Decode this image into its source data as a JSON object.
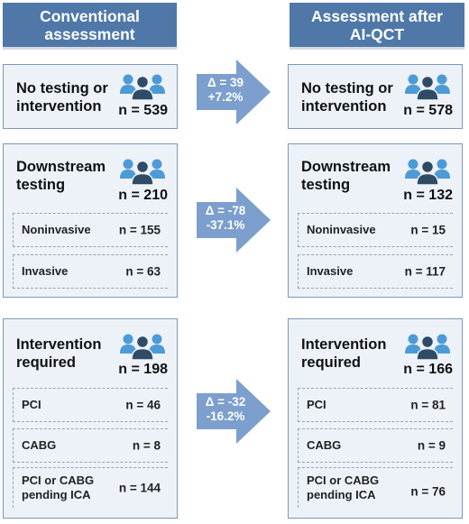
{
  "headers": {
    "left": "Conventional\nassessment",
    "right": "Assessment after\nAI-QCT"
  },
  "left": {
    "no_testing": {
      "title": "No testing or\nintervention",
      "total": "n = 539"
    },
    "downstream": {
      "title": "Downstream\ntesting",
      "total": "n = 210",
      "items": [
        {
          "label": "Noninvasive",
          "value": "n = 155"
        },
        {
          "label": "Invasive",
          "value": "n = 63"
        }
      ]
    },
    "intervention": {
      "title": "Intervention\nrequired",
      "total": "n = 198",
      "items": [
        {
          "label": "PCI",
          "value": "n = 46"
        },
        {
          "label": "CABG",
          "value": "n = 8"
        },
        {
          "label": "PCI or CABG\npending ICA",
          "value": "n = 144"
        }
      ]
    }
  },
  "right": {
    "no_testing": {
      "title": "No testing or\nintervention",
      "total": "n = 578"
    },
    "downstream": {
      "title": "Downstream\ntesting",
      "total": "n = 132",
      "items": [
        {
          "label": "Noninvasive",
          "value": "n = 15"
        },
        {
          "label": "Invasive",
          "value": "n = 117"
        }
      ]
    },
    "intervention": {
      "title": "Intervention\nrequired",
      "total": "n = 166",
      "items": [
        {
          "label": "PCI",
          "value": "n = 81"
        },
        {
          "label": "CABG",
          "value": "n = 9"
        },
        {
          "label": "PCI or CABG\npending ICA",
          "value": "n = 76"
        }
      ]
    }
  },
  "arrows": [
    {
      "delta": "Δ = 39",
      "pct": "+7.2%"
    },
    {
      "delta": "Δ = -78",
      "pct": "-37.1%"
    },
    {
      "delta": "Δ = -32",
      "pct": "-16.2%"
    }
  ],
  "colors": {
    "header": "#4f78a8",
    "box_fill": "#edf2f9",
    "box_border": "#7b97bb",
    "arrow": "#7c9fcd",
    "people_front": "#2f4b66",
    "people_back": "#4d9bd6"
  },
  "icon": "people-group-icon"
}
